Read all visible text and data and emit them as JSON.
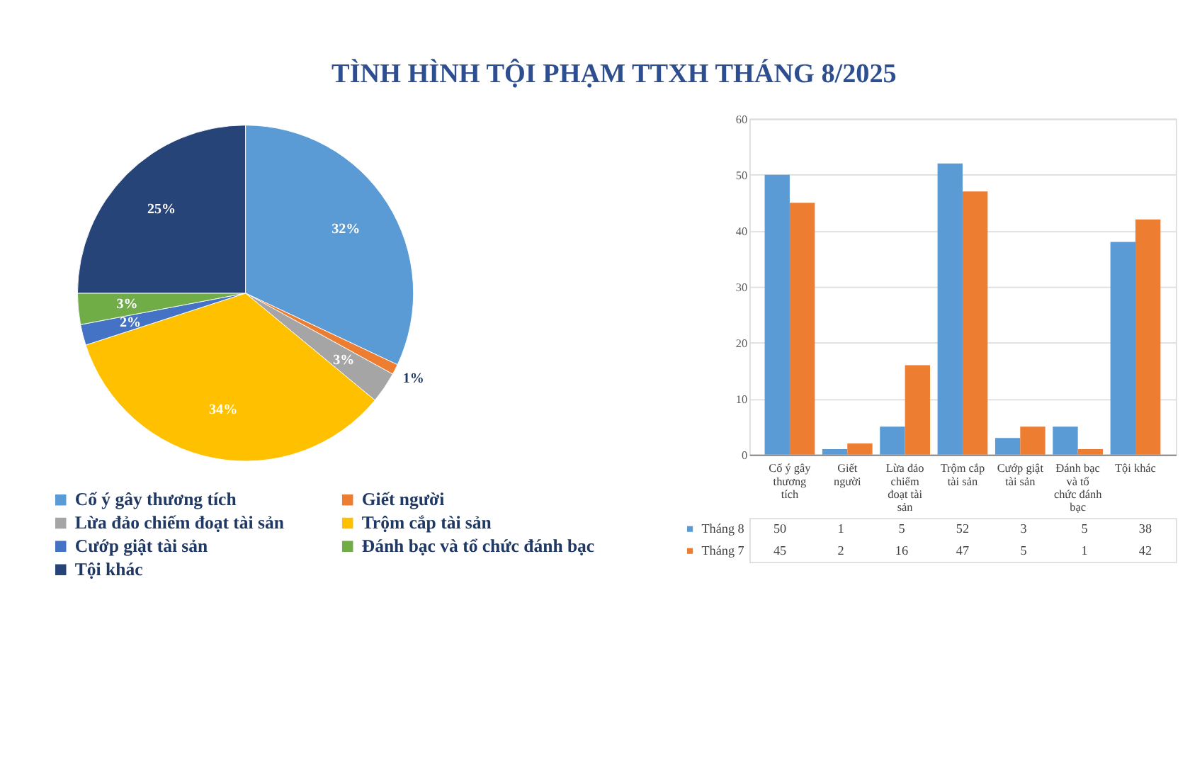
{
  "chart_data": [
    {
      "type": "pie",
      "title": "TÌNH HÌNH TỘI PHẠM TTXH THÁNG 8/2025",
      "categories": [
        "Cố ý gây thương tích",
        "Giết người",
        "Lừa đảo chiếm đoạt tài sản",
        "Trộm cắp tài sản",
        "Cướp giật tài sản",
        "Đánh bạc và tổ chức đánh bạc",
        "Tội khác"
      ],
      "values": [
        32,
        1,
        3,
        34,
        2,
        3,
        25
      ],
      "colors": [
        "#5b9bd5",
        "#ed7d31",
        "#a5a5a5",
        "#ffc000",
        "#4472c4",
        "#70ad47",
        "#264478"
      ],
      "value_labels": [
        "32%",
        "1%",
        "3%",
        "34%",
        "2%",
        "3%",
        "25%"
      ],
      "legend": "bottom"
    },
    {
      "type": "bar",
      "categories": [
        "Cố ý gây thương tích",
        "Giết người",
        "Lừa đảo chiếm đoạt tài sản",
        "Trộm cắp tài sản",
        "Cướp giật tài sản",
        "Đánh bạc và tổ chức đánh bạc",
        "Tội khác"
      ],
      "series": [
        {
          "name": "Tháng 8",
          "color": "#5b9bd5",
          "values": [
            50,
            1,
            5,
            52,
            3,
            5,
            38
          ]
        },
        {
          "name": "Tháng 7",
          "color": "#ed7d31",
          "values": [
            45,
            2,
            16,
            47,
            5,
            1,
            42
          ]
        }
      ],
      "ylim": [
        0,
        60
      ],
      "yticks": [
        0,
        10,
        20,
        30,
        40,
        50,
        60
      ],
      "grid": "y",
      "data_labels": true,
      "legend": "bottom"
    }
  ]
}
